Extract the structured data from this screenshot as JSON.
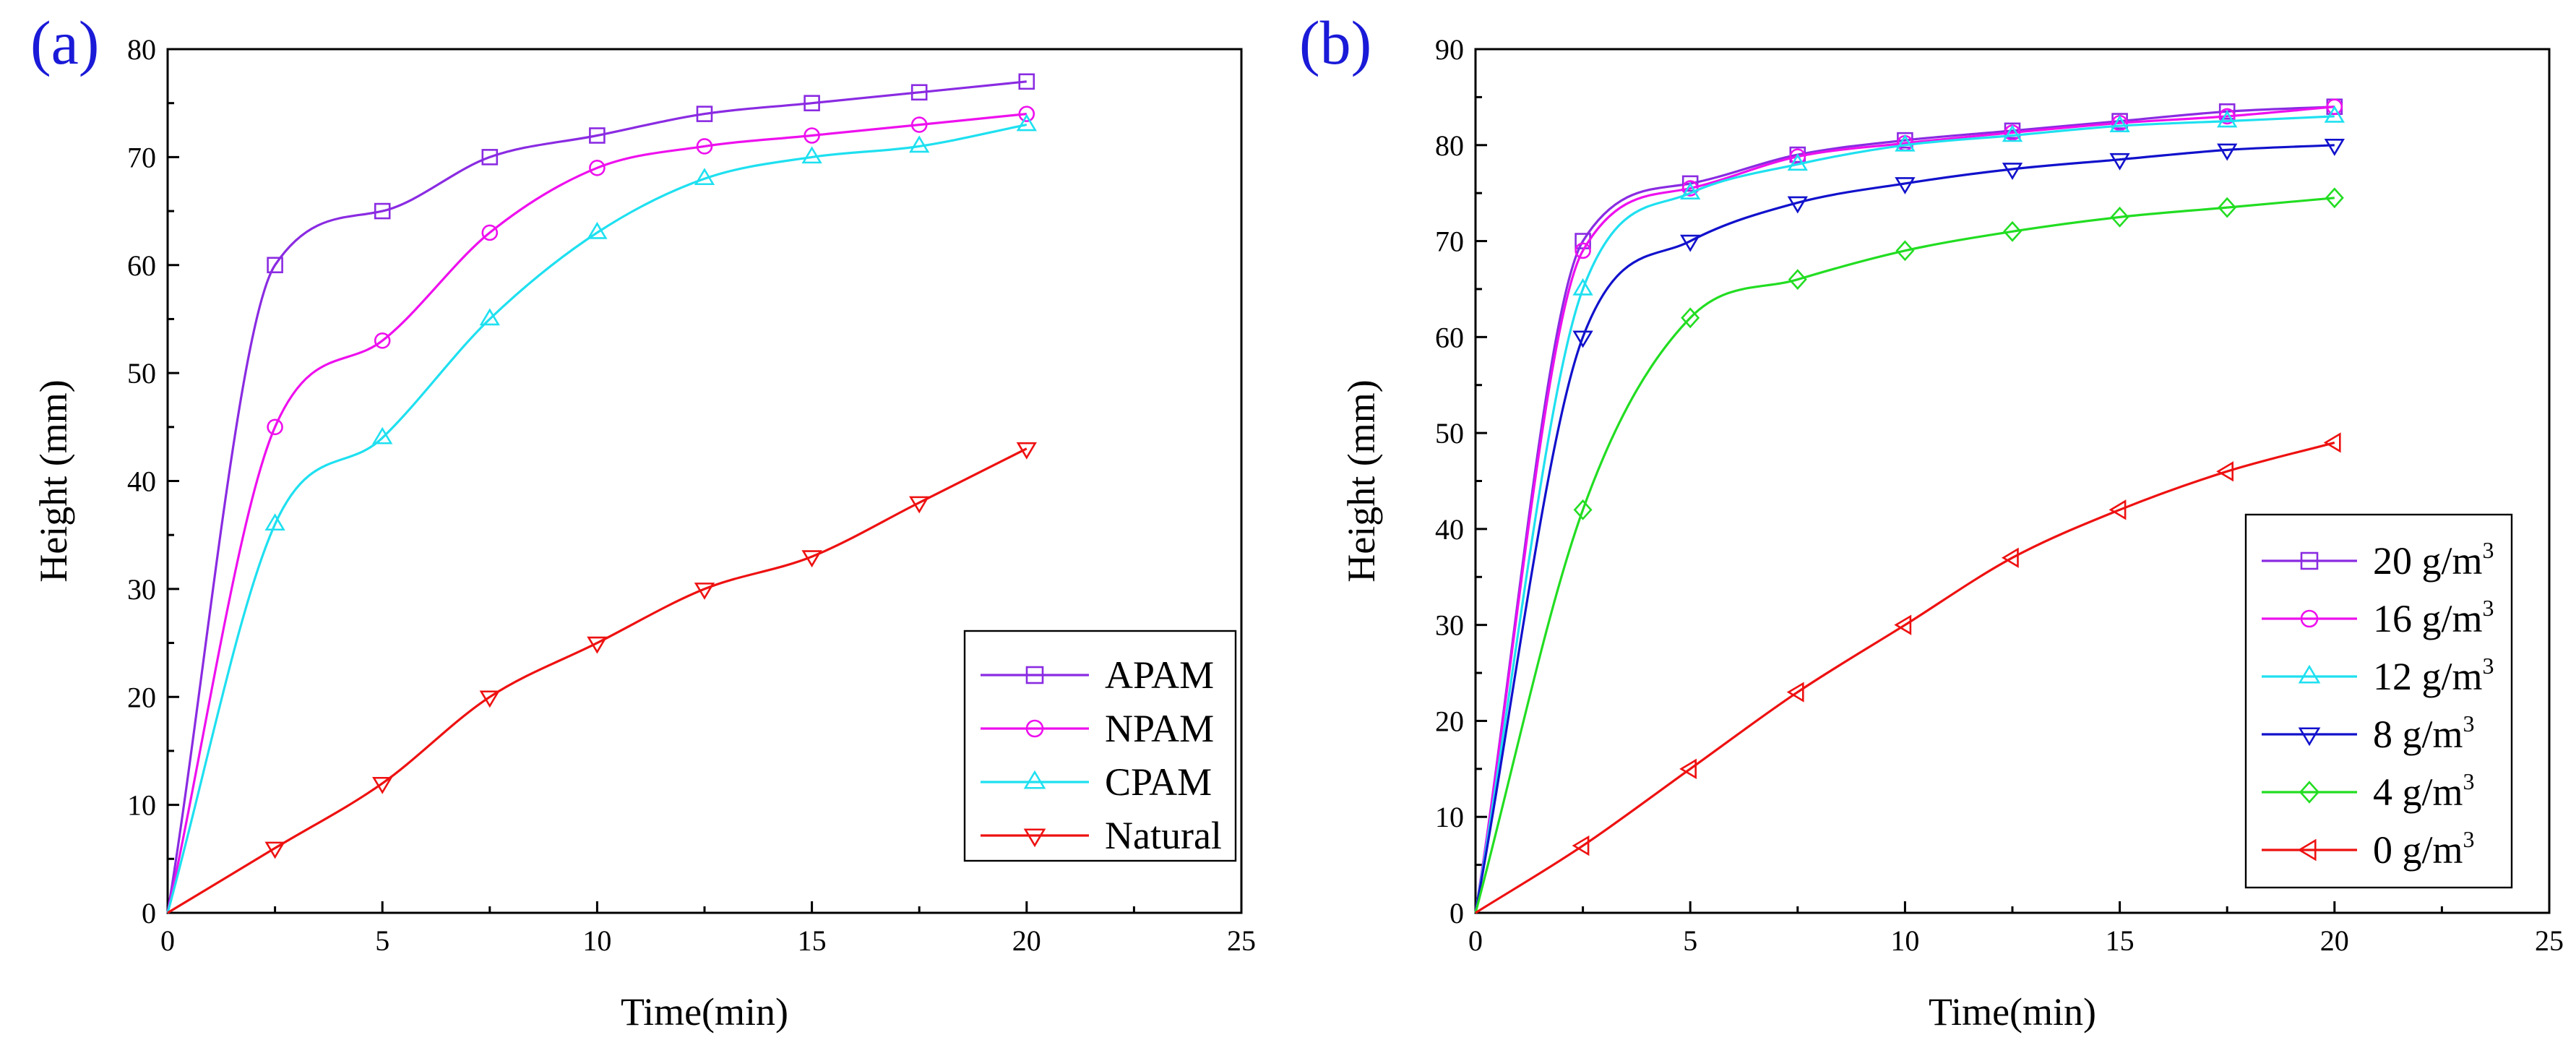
{
  "chart_data": [
    {
      "type": "line",
      "panel_label": "(a)",
      "xlabel": "Time(min)",
      "ylabel": "Height (mm)",
      "xlim": [
        0,
        25
      ],
      "ylim": [
        0,
        80
      ],
      "xticks": [
        0,
        5,
        10,
        15,
        20,
        25
      ],
      "yticks": [
        0,
        10,
        20,
        30,
        40,
        50,
        60,
        70,
        80
      ],
      "grid": false,
      "legend_position": "bottom-right",
      "series": [
        {
          "name": "APAM",
          "color": "#8a2be2",
          "marker": "square",
          "x": [
            0,
            2.5,
            5,
            7.5,
            10,
            12.5,
            15,
            17.5,
            20
          ],
          "y": [
            0,
            60,
            65,
            70,
            72,
            74,
            75,
            76,
            77
          ]
        },
        {
          "name": "NPAM",
          "color": "#ee10ee",
          "marker": "circle",
          "x": [
            0,
            2.5,
            5,
            7.5,
            10,
            12.5,
            15,
            17.5,
            20
          ],
          "y": [
            0,
            45,
            53,
            63,
            69,
            71,
            72,
            73,
            74
          ]
        },
        {
          "name": "CPAM",
          "color": "#1ee0f0",
          "marker": "triangle-up",
          "x": [
            0,
            2.5,
            5,
            7.5,
            10,
            12.5,
            15,
            17.5,
            20
          ],
          "y": [
            0,
            36,
            44,
            55,
            63,
            68,
            70,
            71,
            73
          ]
        },
        {
          "name": "Natural",
          "color": "#ee1111",
          "marker": "triangle-down",
          "x": [
            0,
            2.5,
            5,
            7.5,
            10,
            12.5,
            15,
            17.5,
            20
          ],
          "y": [
            0,
            6,
            12,
            20,
            25,
            30,
            33,
            38,
            43
          ]
        }
      ]
    },
    {
      "type": "line",
      "panel_label": "(b)",
      "xlabel": "Time(min)",
      "ylabel": "Height (mm)",
      "xlim": [
        0,
        25
      ],
      "ylim": [
        0,
        90
      ],
      "xticks": [
        0,
        5,
        10,
        15,
        20,
        25
      ],
      "yticks": [
        0,
        10,
        20,
        30,
        40,
        50,
        60,
        70,
        80,
        90
      ],
      "grid": false,
      "legend_position": "bottom-right",
      "series": [
        {
          "name": "20 g/m3",
          "label_main": "20 g/m",
          "label_sup": "3",
          "color": "#8a2be2",
          "marker": "square",
          "x": [
            0,
            2.5,
            5,
            7.5,
            10,
            12.5,
            15,
            17.5,
            20
          ],
          "y": [
            0,
            70,
            76,
            79,
            80.5,
            81.5,
            82.5,
            83.5,
            84
          ]
        },
        {
          "name": "16 g/m3",
          "label_main": "16 g/m",
          "label_sup": "3",
          "color": "#ee10ee",
          "marker": "circle",
          "x": [
            0,
            2.5,
            5,
            7.5,
            10,
            12.5,
            15,
            17.5,
            20
          ],
          "y": [
            0,
            69,
            75.5,
            78.8,
            80.2,
            81.3,
            82.3,
            83,
            84
          ]
        },
        {
          "name": "12 g/m3",
          "label_main": "12 g/m",
          "label_sup": "3",
          "color": "#1ee0f0",
          "marker": "triangle-up",
          "x": [
            0,
            2.5,
            5,
            7.5,
            10,
            12.5,
            15,
            17.5,
            20
          ],
          "y": [
            0,
            65,
            75,
            78,
            80,
            81,
            82,
            82.5,
            83
          ]
        },
        {
          "name": "8   g/m3",
          "label_main": "8   g/m",
          "label_sup": "3",
          "color": "#1111cc",
          "marker": "triangle-down",
          "x": [
            0,
            2.5,
            5,
            7.5,
            10,
            12.5,
            15,
            17.5,
            20
          ],
          "y": [
            0,
            60,
            70,
            74,
            76,
            77.5,
            78.5,
            79.5,
            80
          ]
        },
        {
          "name": "4   g/m3",
          "label_main": "4   g/m",
          "label_sup": "3",
          "color": "#22dd22",
          "marker": "diamond",
          "x": [
            0,
            2.5,
            5,
            7.5,
            10,
            12.5,
            15,
            17.5,
            20
          ],
          "y": [
            0,
            42,
            62,
            66,
            69,
            71,
            72.5,
            73.5,
            74.5
          ]
        },
        {
          "name": "0   g/m3",
          "label_main": "0   g/m",
          "label_sup": "3",
          "color": "#ee1111",
          "marker": "triangle-left",
          "x": [
            0,
            2.5,
            5,
            7.5,
            10,
            12.5,
            15,
            17.5,
            20
          ],
          "y": [
            0,
            7,
            15,
            23,
            30,
            37,
            42,
            46,
            49
          ]
        }
      ]
    }
  ]
}
